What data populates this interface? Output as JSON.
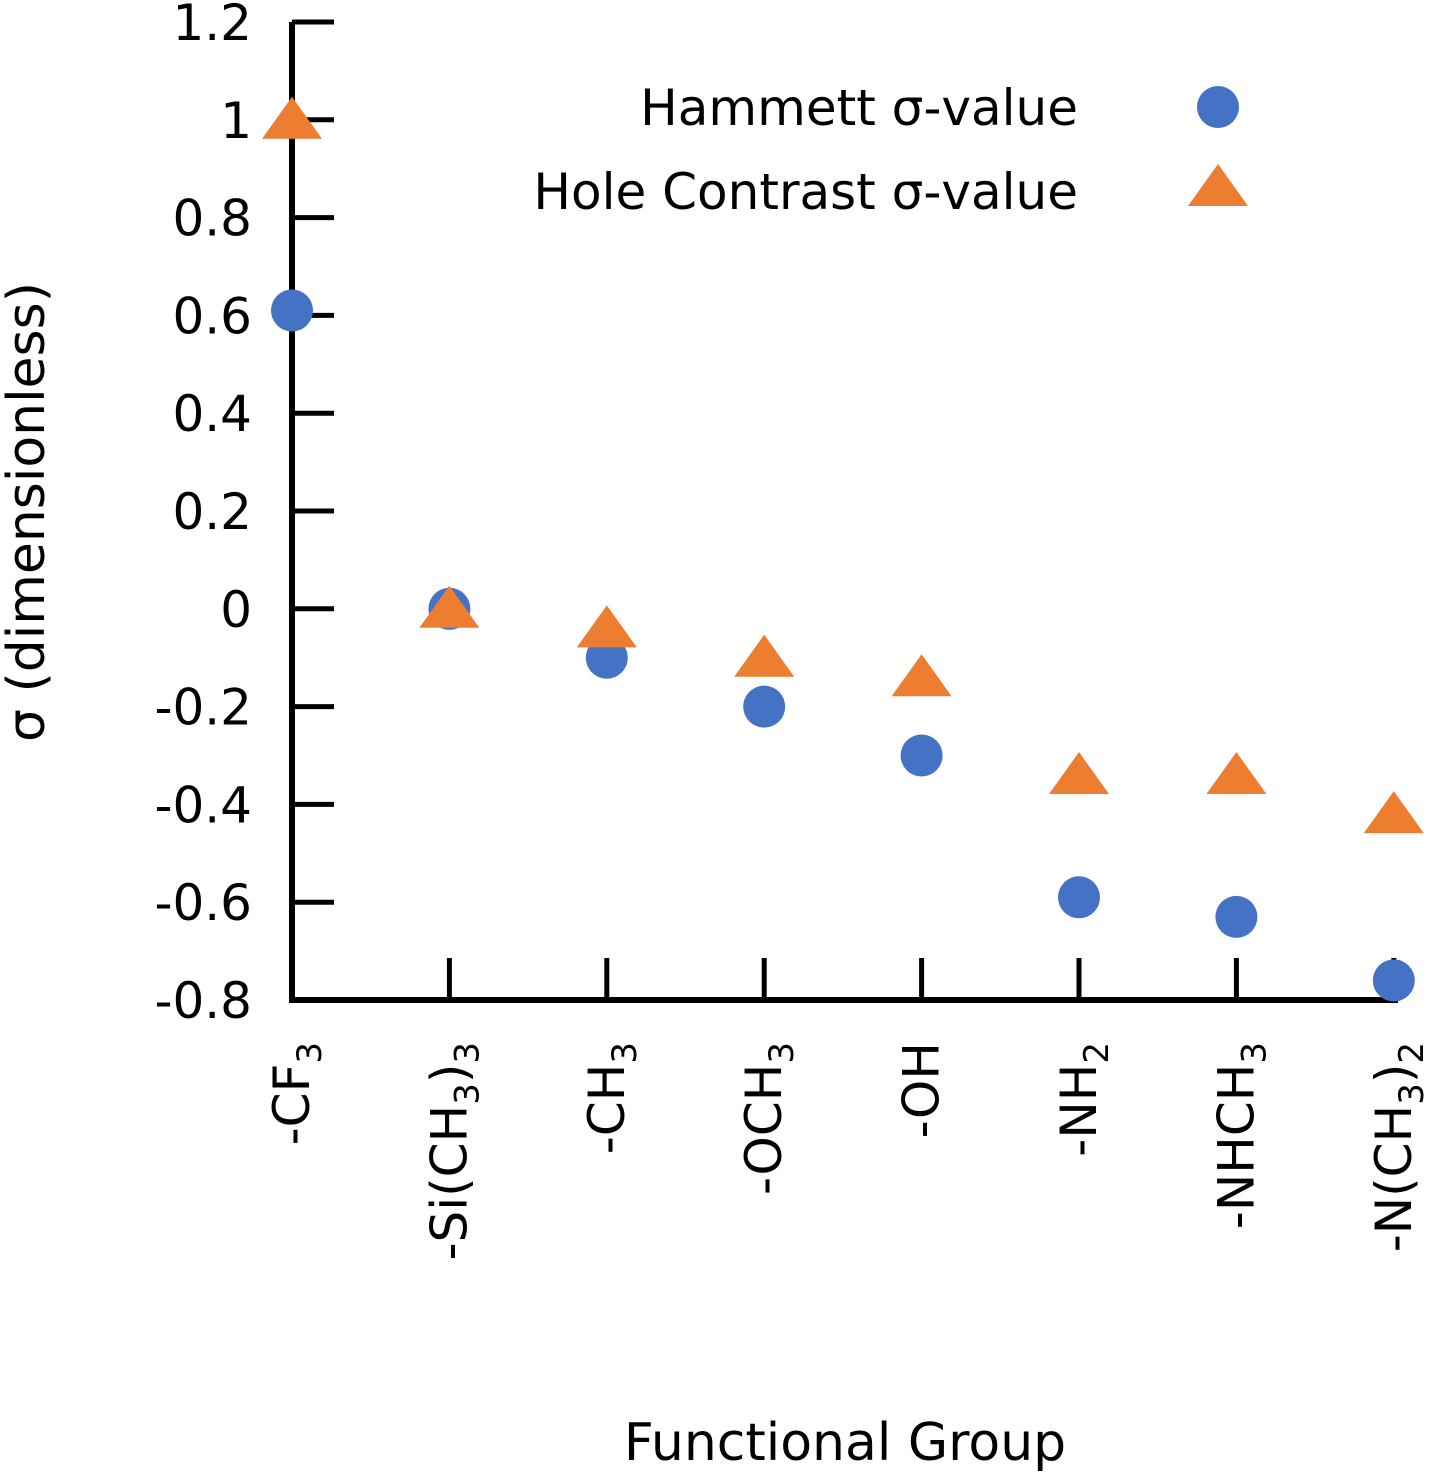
{
  "chart_data": {
    "type": "scatter",
    "title": "",
    "xlabel": "Functional Group",
    "ylabel": "σ (dimensionless)",
    "ylim": [
      -0.8,
      1.2
    ],
    "yticks": [
      "1.2",
      "1",
      "0.8",
      "0.6",
      "0.4",
      "0.2",
      "0",
      "-0.2",
      "-0.4",
      "-0.6",
      "-0.8"
    ],
    "ytick_values": [
      1.2,
      1.0,
      0.8,
      0.6,
      0.4,
      0.2,
      0.0,
      -0.2,
      -0.4,
      -0.6,
      -0.8
    ],
    "categories": [
      {
        "label": "-CF",
        "sub": "3",
        "tail": ""
      },
      {
        "label": "-Si(CH",
        "sub": "3",
        "tail": ")3"
      },
      {
        "label": "-CH",
        "sub": "3",
        "tail": ""
      },
      {
        "label": "-OCH",
        "sub": "3",
        "tail": ""
      },
      {
        "label": "-OH",
        "sub": "",
        "tail": ""
      },
      {
        "label": "-NH",
        "sub": "2",
        "tail": ""
      },
      {
        "label": "-NHCH",
        "sub": "3",
        "tail": ""
      },
      {
        "label": "-N(CH",
        "sub": "3",
        "tail": ")2"
      }
    ],
    "series": [
      {
        "name": "Hammett σ-value",
        "marker": "circle",
        "color": "#4472C4",
        "values": [
          0.61,
          0.0,
          -0.1,
          -0.2,
          -0.3,
          -0.59,
          -0.63,
          -0.76
        ]
      },
      {
        "name": "Hole Contrast σ-value",
        "marker": "triangle",
        "color": "#ED7D31",
        "values": [
          1.0,
          0.0,
          -0.04,
          -0.1,
          -0.14,
          -0.34,
          -0.34,
          -0.42
        ]
      }
    ],
    "legend_position": "top-right",
    "grid": false
  }
}
